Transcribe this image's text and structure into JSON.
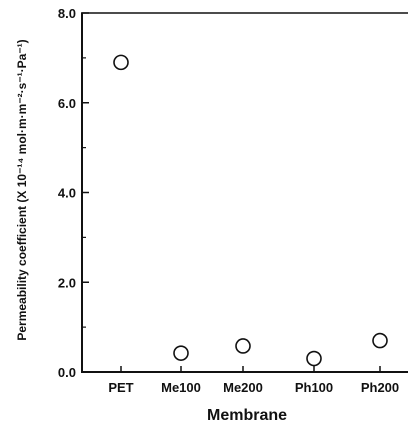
{
  "chart_data": {
    "type": "scatter",
    "title": "",
    "xlabel": "Membrane",
    "ylabel": "Permeability coefficient (X 10⁻¹⁴ mol·m·m⁻²·s⁻¹·Pa⁻¹)",
    "categories": [
      "PET",
      "Me100",
      "Me200",
      "Ph100",
      "Ph200"
    ],
    "values": [
      6.9,
      0.42,
      0.58,
      0.3,
      0.7
    ],
    "ylim": [
      0,
      8.0
    ],
    "yticks": [
      "0.0",
      "2.0",
      "4.0",
      "6.0",
      "8.0"
    ],
    "grid": false,
    "marker": "open-circle",
    "colors": {
      "axis": "#111111",
      "marker_stroke": "#111111",
      "marker_fill": "#ffffff"
    }
  }
}
